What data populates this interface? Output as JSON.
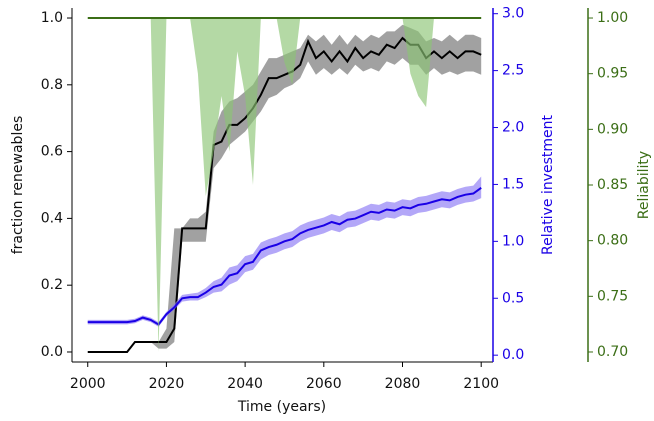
{
  "chart_data": {
    "type": "line",
    "xlabel": "Time (years)",
    "ylabel": "fraction renewables",
    "y2label": "Relative investment",
    "y3label": "Reliability",
    "x": [
      2000,
      2002,
      2004,
      2006,
      2008,
      2010,
      2012,
      2014,
      2016,
      2018,
      2020,
      2022,
      2024,
      2026,
      2028,
      2030,
      2032,
      2034,
      2036,
      2038,
      2040,
      2042,
      2044,
      2046,
      2048,
      2050,
      2052,
      2054,
      2056,
      2058,
      2060,
      2062,
      2064,
      2066,
      2068,
      2070,
      2072,
      2074,
      2076,
      2078,
      2080,
      2082,
      2084,
      2086,
      2088,
      2090,
      2092,
      2094,
      2096,
      2098,
      2100
    ],
    "xlim": [
      1996,
      2103
    ],
    "xticks": [
      2000,
      2020,
      2040,
      2060,
      2080,
      2100
    ],
    "ylim": [
      -0.03,
      1.03
    ],
    "yticks": [
      {
        "value": 0,
        "label": "0.0"
      },
      {
        "value": 0.2,
        "label": "0.2"
      },
      {
        "value": 0.4,
        "label": "0.4"
      },
      {
        "value": 0.6,
        "label": "0.6"
      },
      {
        "value": 0.8,
        "label": "0.8"
      },
      {
        "value": 1,
        "label": "1.0"
      }
    ],
    "y2lim": [
      -0.06,
      3.05
    ],
    "y2ticks": [
      {
        "value": 0,
        "label": "0.0"
      },
      0.5,
      {
        "value": 1,
        "label": "1.0"
      },
      1.5,
      {
        "value": 2,
        "label": "2.0"
      },
      2.5,
      {
        "value": 3,
        "label": "3.0"
      }
    ],
    "y2color": "#1a00e6",
    "y3lim": [
      0.691,
      1.009
    ],
    "y3ticks": [
      {
        "value": 0.7,
        "label": "0.70"
      },
      0.75,
      {
        "value": 0.8,
        "label": "0.80"
      },
      0.85,
      {
        "value": 0.9,
        "label": "0.90"
      },
      0.95,
      {
        "value": 1,
        "label": "1.00"
      }
    ],
    "y3color": "#3b6e16",
    "series": [
      {
        "axis": "y",
        "color": "#000000",
        "band_color": "#6e6e6e",
        "values": [
          0,
          0,
          0,
          0,
          0,
          0,
          0.03,
          0.03,
          0.03,
          0.03,
          0.03,
          0.07,
          0.37,
          0.37,
          0.37,
          0.37,
          0.62,
          0.63,
          0.68,
          0.68,
          0.7,
          0.73,
          0.77,
          0.82,
          0.82,
          0.83,
          0.84,
          0.86,
          0.93,
          0.88,
          0.9,
          0.87,
          0.9,
          0.87,
          0.91,
          0.88,
          0.9,
          0.89,
          0.92,
          0.91,
          0.94,
          0.92,
          0.92,
          0.88,
          0.9,
          0.88,
          0.9,
          0.88,
          0.9,
          0.9,
          0.89
        ],
        "lower": [
          0,
          0,
          0,
          0,
          0,
          0,
          0.03,
          0.03,
          0.03,
          0.01,
          0.01,
          0.03,
          0.33,
          0.33,
          0.33,
          0.33,
          0.55,
          0.58,
          0.62,
          0.64,
          0.66,
          0.69,
          0.72,
          0.76,
          0.77,
          0.79,
          0.8,
          0.82,
          0.87,
          0.83,
          0.85,
          0.83,
          0.85,
          0.83,
          0.86,
          0.84,
          0.85,
          0.84,
          0.87,
          0.86,
          0.88,
          0.86,
          0.86,
          0.83,
          0.85,
          0.83,
          0.84,
          0.83,
          0.84,
          0.84,
          0.83
        ],
        "upper": [
          0,
          0,
          0,
          0,
          0,
          0,
          0.03,
          0.03,
          0.03,
          0.03,
          0.07,
          0.37,
          0.37,
          0.4,
          0.4,
          0.42,
          0.66,
          0.72,
          0.75,
          0.76,
          0.78,
          0.8,
          0.84,
          0.88,
          0.88,
          0.89,
          0.9,
          0.91,
          0.95,
          0.93,
          0.95,
          0.92,
          0.95,
          0.92,
          0.95,
          0.93,
          0.95,
          0.94,
          0.96,
          0.96,
          0.98,
          0.97,
          0.96,
          0.93,
          0.94,
          0.93,
          0.95,
          0.93,
          0.95,
          0.95,
          0.94
        ]
      },
      {
        "axis": "y2",
        "color": "#1a00e6",
        "band_color": "#8a78f5",
        "values": [
          0.29,
          0.29,
          0.29,
          0.29,
          0.29,
          0.29,
          0.3,
          0.33,
          0.31,
          0.27,
          0.36,
          0.42,
          0.5,
          0.51,
          0.51,
          0.55,
          0.6,
          0.62,
          0.7,
          0.72,
          0.8,
          0.82,
          0.92,
          0.95,
          0.97,
          1.0,
          1.02,
          1.07,
          1.1,
          1.12,
          1.14,
          1.17,
          1.15,
          1.19,
          1.2,
          1.23,
          1.26,
          1.25,
          1.28,
          1.27,
          1.3,
          1.29,
          1.32,
          1.33,
          1.35,
          1.37,
          1.36,
          1.39,
          1.41,
          1.42,
          1.47
        ],
        "lower": [
          0.27,
          0.27,
          0.27,
          0.27,
          0.27,
          0.27,
          0.28,
          0.31,
          0.29,
          0.25,
          0.34,
          0.4,
          0.47,
          0.48,
          0.48,
          0.51,
          0.55,
          0.56,
          0.62,
          0.65,
          0.73,
          0.75,
          0.84,
          0.88,
          0.9,
          0.93,
          0.95,
          1.0,
          1.03,
          1.05,
          1.07,
          1.1,
          1.08,
          1.12,
          1.13,
          1.16,
          1.19,
          1.18,
          1.21,
          1.2,
          1.23,
          1.22,
          1.25,
          1.26,
          1.28,
          1.3,
          1.29,
          1.32,
          1.34,
          1.35,
          1.38
        ],
        "upper": [
          0.31,
          0.31,
          0.31,
          0.31,
          0.31,
          0.31,
          0.32,
          0.35,
          0.33,
          0.29,
          0.38,
          0.45,
          0.53,
          0.54,
          0.55,
          0.59,
          0.65,
          0.68,
          0.77,
          0.79,
          0.87,
          0.89,
          0.99,
          1.02,
          1.04,
          1.07,
          1.09,
          1.14,
          1.17,
          1.19,
          1.21,
          1.24,
          1.22,
          1.26,
          1.27,
          1.3,
          1.33,
          1.32,
          1.35,
          1.34,
          1.37,
          1.36,
          1.39,
          1.4,
          1.42,
          1.44,
          1.43,
          1.46,
          1.48,
          1.49,
          1.57
        ]
      },
      {
        "axis": "y3",
        "color": "#3b6e16",
        "band_color": "#8cc474",
        "values": [
          1,
          1,
          1,
          1,
          1,
          1,
          1,
          1,
          1,
          1,
          1,
          1,
          1,
          1,
          1,
          1,
          1,
          1,
          1,
          1,
          1,
          1,
          1,
          1,
          1,
          1,
          1,
          1,
          1,
          1,
          1,
          1,
          1,
          1,
          1,
          1,
          1,
          1,
          1,
          1,
          1,
          1,
          1,
          1,
          1,
          1,
          1,
          1,
          1,
          1,
          1
        ],
        "lower": [
          1,
          1,
          1,
          1,
          1,
          1,
          1,
          1,
          1,
          0.7,
          1,
          1,
          1,
          1,
          0.95,
          0.84,
          0.88,
          0.93,
          0.88,
          0.97,
          0.93,
          0.85,
          1,
          1,
          1,
          0.96,
          0.94,
          1,
          1,
          1,
          1,
          1,
          1,
          1,
          1,
          1,
          1,
          1,
          1,
          1,
          1,
          0.95,
          0.93,
          0.92,
          1,
          1,
          1,
          1,
          1,
          1,
          1
        ]
      }
    ]
  }
}
